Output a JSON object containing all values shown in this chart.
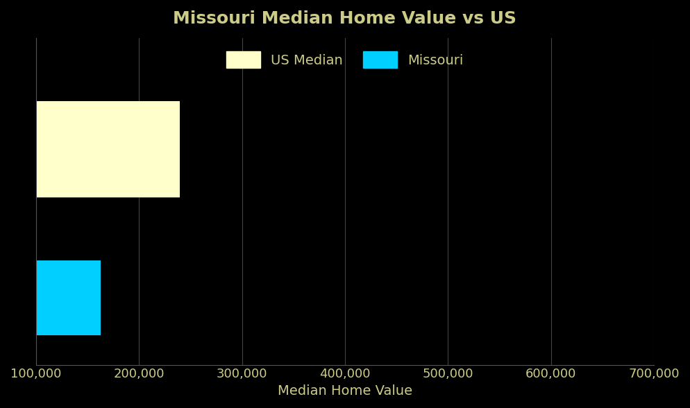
{
  "title": "Missouri Median Home Value vs US",
  "xlabel": "Median Home Value",
  "us_median_value": 240000,
  "missouri_value": 163000,
  "xlim": [
    100000,
    700000
  ],
  "xticks": [
    100000,
    200000,
    300000,
    400000,
    500000,
    600000,
    700000
  ],
  "xtick_labels": [
    "100,000",
    "200,000",
    "300,000",
    "400,000",
    "500,000",
    "600,000",
    "700,000"
  ],
  "bar_us_color": "#ffffcc",
  "bar_mo_color": "#00cfff",
  "background_color": "#000000",
  "text_color": "#cccc88",
  "title_color": "#cccc88",
  "legend_labels": [
    "US Median",
    "Missouri"
  ],
  "figsize": [
    9.94,
    5.89
  ],
  "dpi": 100,
  "y_us": 1.0,
  "y_mo": 0.0,
  "bar_height_us": 0.65,
  "bar_height_mo": 0.5,
  "ylim": [
    -0.45,
    1.75
  ]
}
